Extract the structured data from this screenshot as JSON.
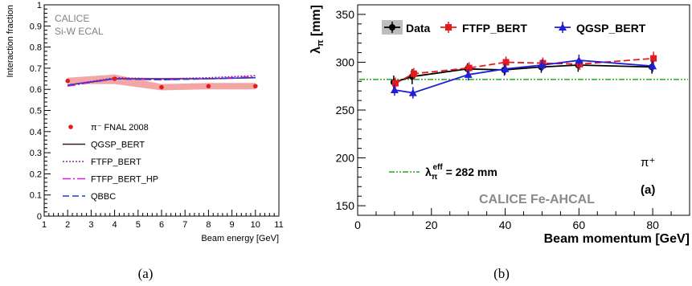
{
  "captions": {
    "left": "(a)",
    "right": "(b)"
  },
  "chart_data": [
    {
      "type": "line",
      "xlabel": "Beam energy [GeV]",
      "ylabel": "Interaction fraction",
      "xlim": [
        1,
        11
      ],
      "ylim": [
        0,
        1
      ],
      "x_ticks": [
        "1",
        "2",
        "3",
        "4",
        "5",
        "6",
        "7",
        "8",
        "9",
        "10",
        "11"
      ],
      "y_ticks": [
        "0",
        "0.1",
        "0.2",
        "0.3",
        "0.4",
        "0.5",
        "0.6",
        "0.7",
        "0.8",
        "0.9",
        "1"
      ],
      "annotations": [
        "CALICE",
        "Si-W ECAL"
      ],
      "legend_position": "bottom-left",
      "data": {
        "name": "π⁻ FNAL 2008",
        "x": [
          2,
          4,
          6,
          8,
          10
        ],
        "y": [
          0.64,
          0.65,
          0.61,
          0.615,
          0.615
        ],
        "band_low": [
          0.625,
          0.625,
          0.595,
          0.6,
          0.6
        ],
        "band_high": [
          0.655,
          0.67,
          0.625,
          0.63,
          0.63
        ],
        "color": "#e41a1c",
        "band_color": "#f4a6a6"
      },
      "series": [
        {
          "name": "QGSP_BERT",
          "x": [
            2,
            4,
            6,
            8,
            10
          ],
          "y": [
            0.62,
            0.65,
            0.65,
            0.65,
            0.655
          ],
          "color": "#3a1f2b",
          "style": "solid"
        },
        {
          "name": "FTFP_BERT",
          "x": [
            2,
            4,
            6,
            8,
            10
          ],
          "y": [
            0.62,
            0.655,
            0.65,
            0.655,
            0.665
          ],
          "color": "#9b1fb0",
          "style": "dotted"
        },
        {
          "name": "FTFP_BERT_HP",
          "x": [
            2,
            4,
            6,
            8,
            10
          ],
          "y": [
            0.615,
            0.65,
            0.645,
            0.65,
            0.66
          ],
          "color": "#d01fd0",
          "style": "dashdot"
        },
        {
          "name": "QBBC",
          "x": [
            2,
            4,
            6,
            8,
            10
          ],
          "y": [
            0.62,
            0.65,
            0.645,
            0.65,
            0.655
          ],
          "color": "#1f3fd6",
          "style": "dashed"
        }
      ]
    },
    {
      "type": "scatter",
      "xlabel": "Beam momentum [GeV]",
      "ylabel": "λπ [mm]",
      "xlim": [
        0,
        90
      ],
      "ylim": [
        140,
        360
      ],
      "x_ticks": [
        "0",
        "20",
        "40",
        "60",
        "80"
      ],
      "y_ticks": [
        "150",
        "200",
        "250",
        "300",
        "350"
      ],
      "annotations": [
        "CALICE Fe-AHCAL",
        "(a)",
        "π⁺"
      ],
      "legend_position": "top",
      "reference_line": {
        "label": "λπeff = 282 mm",
        "value": 282,
        "color": "#22aa22"
      },
      "series": [
        {
          "name": "Data",
          "x": [
            10,
            15,
            30,
            40,
            50,
            60,
            80
          ],
          "y": [
            279,
            285,
            293,
            292,
            295,
            297,
            295
          ],
          "err": [
            7,
            8,
            6,
            6,
            6,
            7,
            7
          ],
          "color": "#000000",
          "marker": "circle",
          "style": "solid"
        },
        {
          "name": "FTFP_BERT",
          "x": [
            10,
            15,
            30,
            40,
            50,
            60,
            80
          ],
          "y": [
            278,
            288,
            294,
            300,
            299,
            298,
            304
          ],
          "err": [
            6,
            6,
            6,
            6,
            6,
            6,
            7
          ],
          "color": "#e41a1c",
          "marker": "square",
          "style": "dashed"
        },
        {
          "name": "QGSP_BERT",
          "x": [
            10,
            15,
            30,
            40,
            50,
            60,
            80
          ],
          "y": [
            271,
            268,
            287,
            293,
            297,
            302,
            296
          ],
          "err": [
            6,
            6,
            6,
            6,
            6,
            6,
            6
          ],
          "color": "#1f1fd6",
          "marker": "triangle",
          "style": "solid"
        }
      ]
    }
  ]
}
